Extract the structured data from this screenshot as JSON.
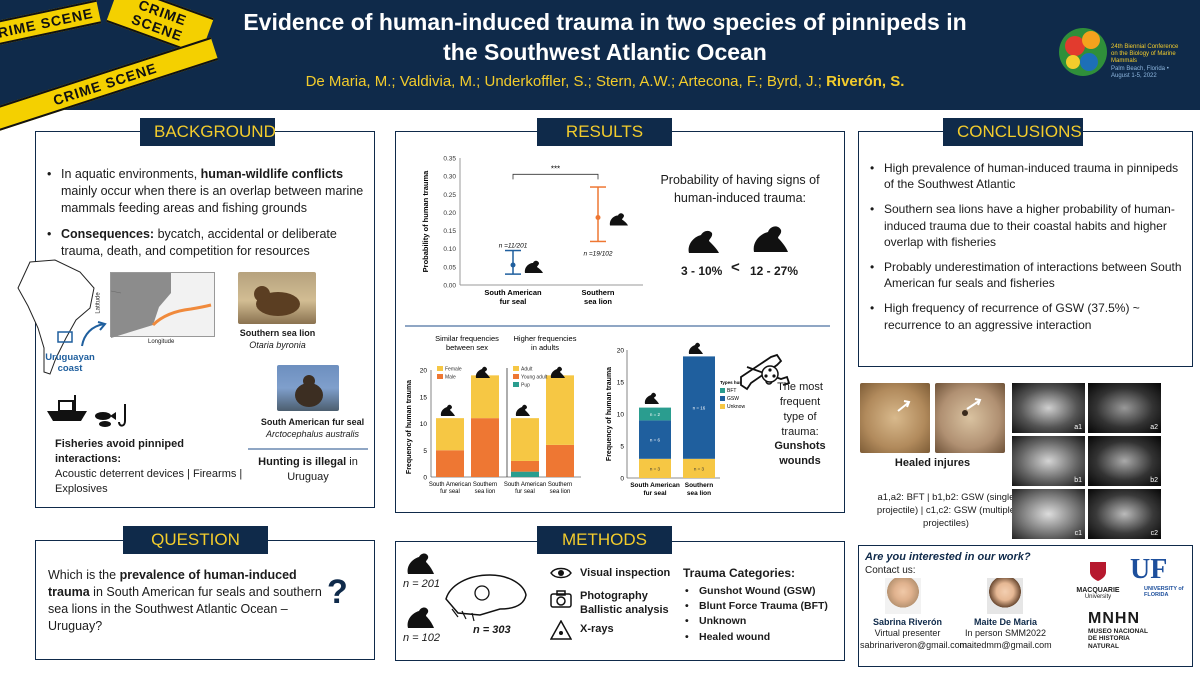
{
  "header": {
    "title_line1": "Evidence of human-induced trauma in two species of pinnipeds in",
    "title_line2": "the Southwest Atlantic Ocean",
    "authors_plain": "De Maria, M.; Valdivia, M.; Underkoffler, S.; Stern, A.W.; Artecona, F.; Byrd, J.;",
    "authors_bold": "Riverón, S.",
    "tape_text": "CRIME SCENE",
    "conference": "24th Biennial Conference on the Biology of Marine Mammals",
    "conference_sub": "Palm Beach, Florida • August 1-5, 2022"
  },
  "background": {
    "label": "BACKGROUND",
    "b1_pre": "In aquatic environments, ",
    "b1_bold": "human-wildlife conflicts",
    "b1_post": " mainly occur when there is an overlap between marine mammals feeding areas and fishing grounds",
    "b2_bold": "Consequences:",
    "b2_post": " bycatch, accidental or deliberate trauma, death, and competition for resources",
    "map_label": "Uruguayan coast",
    "map_axis_y": "Latitude",
    "map_axis_x": "Longitude",
    "sp1_common": "Southern sea lion",
    "sp1_latin": "Otaria byronia",
    "sp2_common": "South American fur seal",
    "sp2_latin": "Arctocephalus australis",
    "fisheries_bold": "Fisheries avoid pinniped interactions:",
    "fisheries_text": "Acoustic deterrent devices | Firearms | Explosives",
    "hunting_bold": "Hunting is illegal",
    "hunting_text": " in Uruguay"
  },
  "question": {
    "label": "QUESTION",
    "pre": "Which is the ",
    "bold": "prevalence of human-induced trauma",
    "post": " in South American fur seals and southern sea lions in the Southwest Atlantic Ocean – Uruguay?",
    "mark": "?"
  },
  "results": {
    "label": "RESULTS",
    "prob_text": "Probability of having signs of human-induced trauma:",
    "range_low": "3 - 10%",
    "lt": "<",
    "range_high": "12 - 27%",
    "sig": "***",
    "n_fur": "n =11/201",
    "n_lion": "n =19/102",
    "panel1_title": "Similar frequencies between sex",
    "panel2_title": "Higher frequencies in adults",
    "most_frequent_1": "The most frequent type of trauma:",
    "most_frequent_bold": "Gunshots wounds",
    "legend_title": "Types human trauma"
  },
  "chart_data": [
    {
      "type": "scatter",
      "title": "",
      "xlabel": "",
      "ylabel": "Probability of human trauma",
      "categories": [
        "South American fur seal",
        "Southern sea lion"
      ],
      "values": [
        0.055,
        0.186
      ],
      "ci_low": [
        0.03,
        0.12
      ],
      "ci_high": [
        0.095,
        0.27
      ],
      "ylim": [
        0,
        0.35
      ],
      "yticks": [
        "0.00",
        "0.05",
        "0.10",
        "0.15",
        "0.20",
        "0.25",
        "0.30",
        "0.35"
      ]
    },
    {
      "type": "bar",
      "stacked": true,
      "title": "Similar frequencies between sex",
      "ylabel": "Frequency of human trauma",
      "categories": [
        "South American fur seal",
        "Southern sea lion"
      ],
      "series": [
        {
          "name": "Male",
          "values": [
            5,
            11
          ]
        },
        {
          "name": "Female",
          "values": [
            6,
            8
          ]
        }
      ],
      "ylim": [
        0,
        20
      ],
      "yticks": [
        "0",
        "5",
        "10",
        "15",
        "20"
      ]
    },
    {
      "type": "bar",
      "stacked": true,
      "title": "Higher frequencies in adults",
      "categories": [
        "South American fur seal",
        "Southern sea lion"
      ],
      "series": [
        {
          "name": "Pup",
          "values": [
            1,
            0
          ]
        },
        {
          "name": "Young adult",
          "values": [
            2,
            6
          ]
        },
        {
          "name": "Adult",
          "values": [
            8,
            13
          ]
        }
      ],
      "ylim": [
        0,
        20
      ]
    },
    {
      "type": "bar",
      "stacked": true,
      "title": "",
      "ylabel": "Frequency of human trauma",
      "categories": [
        "South American fur seal",
        "Southern sea lion"
      ],
      "series": [
        {
          "name": "Unknown",
          "values": [
            3,
            3
          ]
        },
        {
          "name": "GSW",
          "values": [
            6,
            16
          ]
        },
        {
          "name": "BFT",
          "values": [
            2,
            0
          ]
        }
      ],
      "labels": [
        [
          "n = 3",
          "n = 6",
          "n = 2"
        ],
        [
          "n = 3",
          "n = 16",
          ""
        ]
      ],
      "ylim": [
        0,
        20
      ],
      "yticks": [
        "0",
        "5",
        "10",
        "15",
        "20"
      ]
    }
  ],
  "methods": {
    "label": "METHODS",
    "n1": "n = 201",
    "n2": "n = 102",
    "n_total": "n = 303",
    "m1": "Visual inspection",
    "m2a": "Photography",
    "m2b": "Ballistic analysis",
    "m3": "X-rays",
    "cat_title": "Trauma Categories:",
    "cats": [
      "Gunshot Wound (GSW)",
      "Blunt Force Trauma (BFT)",
      "Unknown",
      "Healed wound"
    ]
  },
  "conclusions": {
    "label": "CONCLUSIONS",
    "items": [
      "High prevalence of human-induced trauma in pinnipeds of the Southwest Atlantic",
      "Southern sea lions have a higher probability of human-induced trauma due to their coastal habits and higher overlap with fisheries",
      "Probably underestimation of interactions between South American fur seals and fisheries",
      "High frequency of recurrence of GSW (37.5%) ~ recurrence to an aggressive interaction"
    ],
    "healed": "Healed injures",
    "xray_caption": "a1,a2: BFT | b1,b2: GSW (single projectile) | c1,c2: GSW (multiple projectiles)",
    "xray_tags": [
      "a1",
      "a2",
      "b1",
      "b2",
      "c1",
      "c2"
    ]
  },
  "contact": {
    "question": "Are you interested in our work?",
    "contact_us": "Contact us:",
    "p1_name": "Sabrina Riverón",
    "p1_role": "Virtual presenter",
    "p1_email": "sabrinariveron@gmail.com",
    "p2_name": "Maite De Maria",
    "p2_role": "In person SMM2022",
    "p2_email": "maitedmm@gmail.com",
    "logo_mq": "MACQUARIE",
    "logo_mq2": "University",
    "logo_uf": "UF",
    "logo_uf2": "UNIVERSITY of FLORIDA",
    "logo_mn": "MNHN",
    "logo_mn2": "MUSEO NACIONAL DE HISTORIA NATURAL"
  },
  "colors": {
    "navy": "#0f2a4a",
    "gold": "#f3cc2c",
    "female": "#f6c744",
    "male": "#ee7733",
    "bft": "#2a9d8f",
    "gsw": "#1f5f9e",
    "unknown": "#f6c744"
  }
}
